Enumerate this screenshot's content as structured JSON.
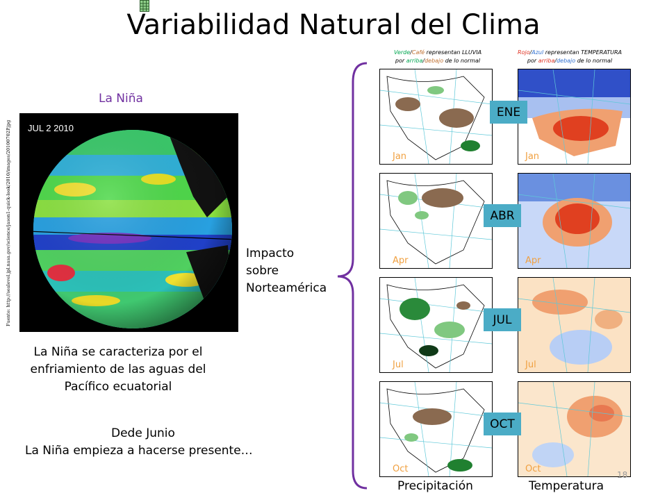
{
  "title": "Variabilidad Natural del Clima",
  "nina_label": "La Niña",
  "globe": {
    "date": "JUL  2 2010"
  },
  "source_text": "Fuente: http://sealevel.jpl.nasa.gov/science/jason1-quick-look/2010/images/20100702P.jpg",
  "description": "La Niña se caracteriza por el enfriamiento de las aguas del Pacífico ecuatorial",
  "since_line1": "Dede Junio",
  "since_line2": "La Niña empieza a hacerse presente…",
  "impact": {
    "line1": "Impacto",
    "line2": "sobre",
    "line3": "Norteamérica"
  },
  "legend_left": {
    "word1": "Verde",
    "sep": "/",
    "word2": "Café",
    "rest1": " representan LLUVIA",
    "line2a": "por ",
    "word3": "arriba",
    "sep2": "/",
    "word4": "debajo",
    "line2b": " de lo normal"
  },
  "legend_right": {
    "word1": "Rojo",
    "sep": "/",
    "word2": "Azul",
    "rest1": " representan TEMPERATURA",
    "line2a": "por ",
    "word3": "arriba",
    "sep2": "/",
    "word4": "debajo",
    "line2b": " de lo normal"
  },
  "months": [
    {
      "box": "ENE",
      "tag": "Jan"
    },
    {
      "box": "ABR",
      "tag": "Apr"
    },
    {
      "box": "JUL",
      "tag": "Jul"
    },
    {
      "box": "OCT",
      "tag": "Oct"
    }
  ],
  "col_precip": "Precipitación",
  "col_temp": "Temperatura",
  "page_number": "18",
  "colors": {
    "accent": "#7030a0",
    "month_box": "#4bacc6",
    "green": "#00a650",
    "brown": "#c07030",
    "red": "#e03020",
    "blue": "#3070d0",
    "month_tag": "#f0a040"
  }
}
